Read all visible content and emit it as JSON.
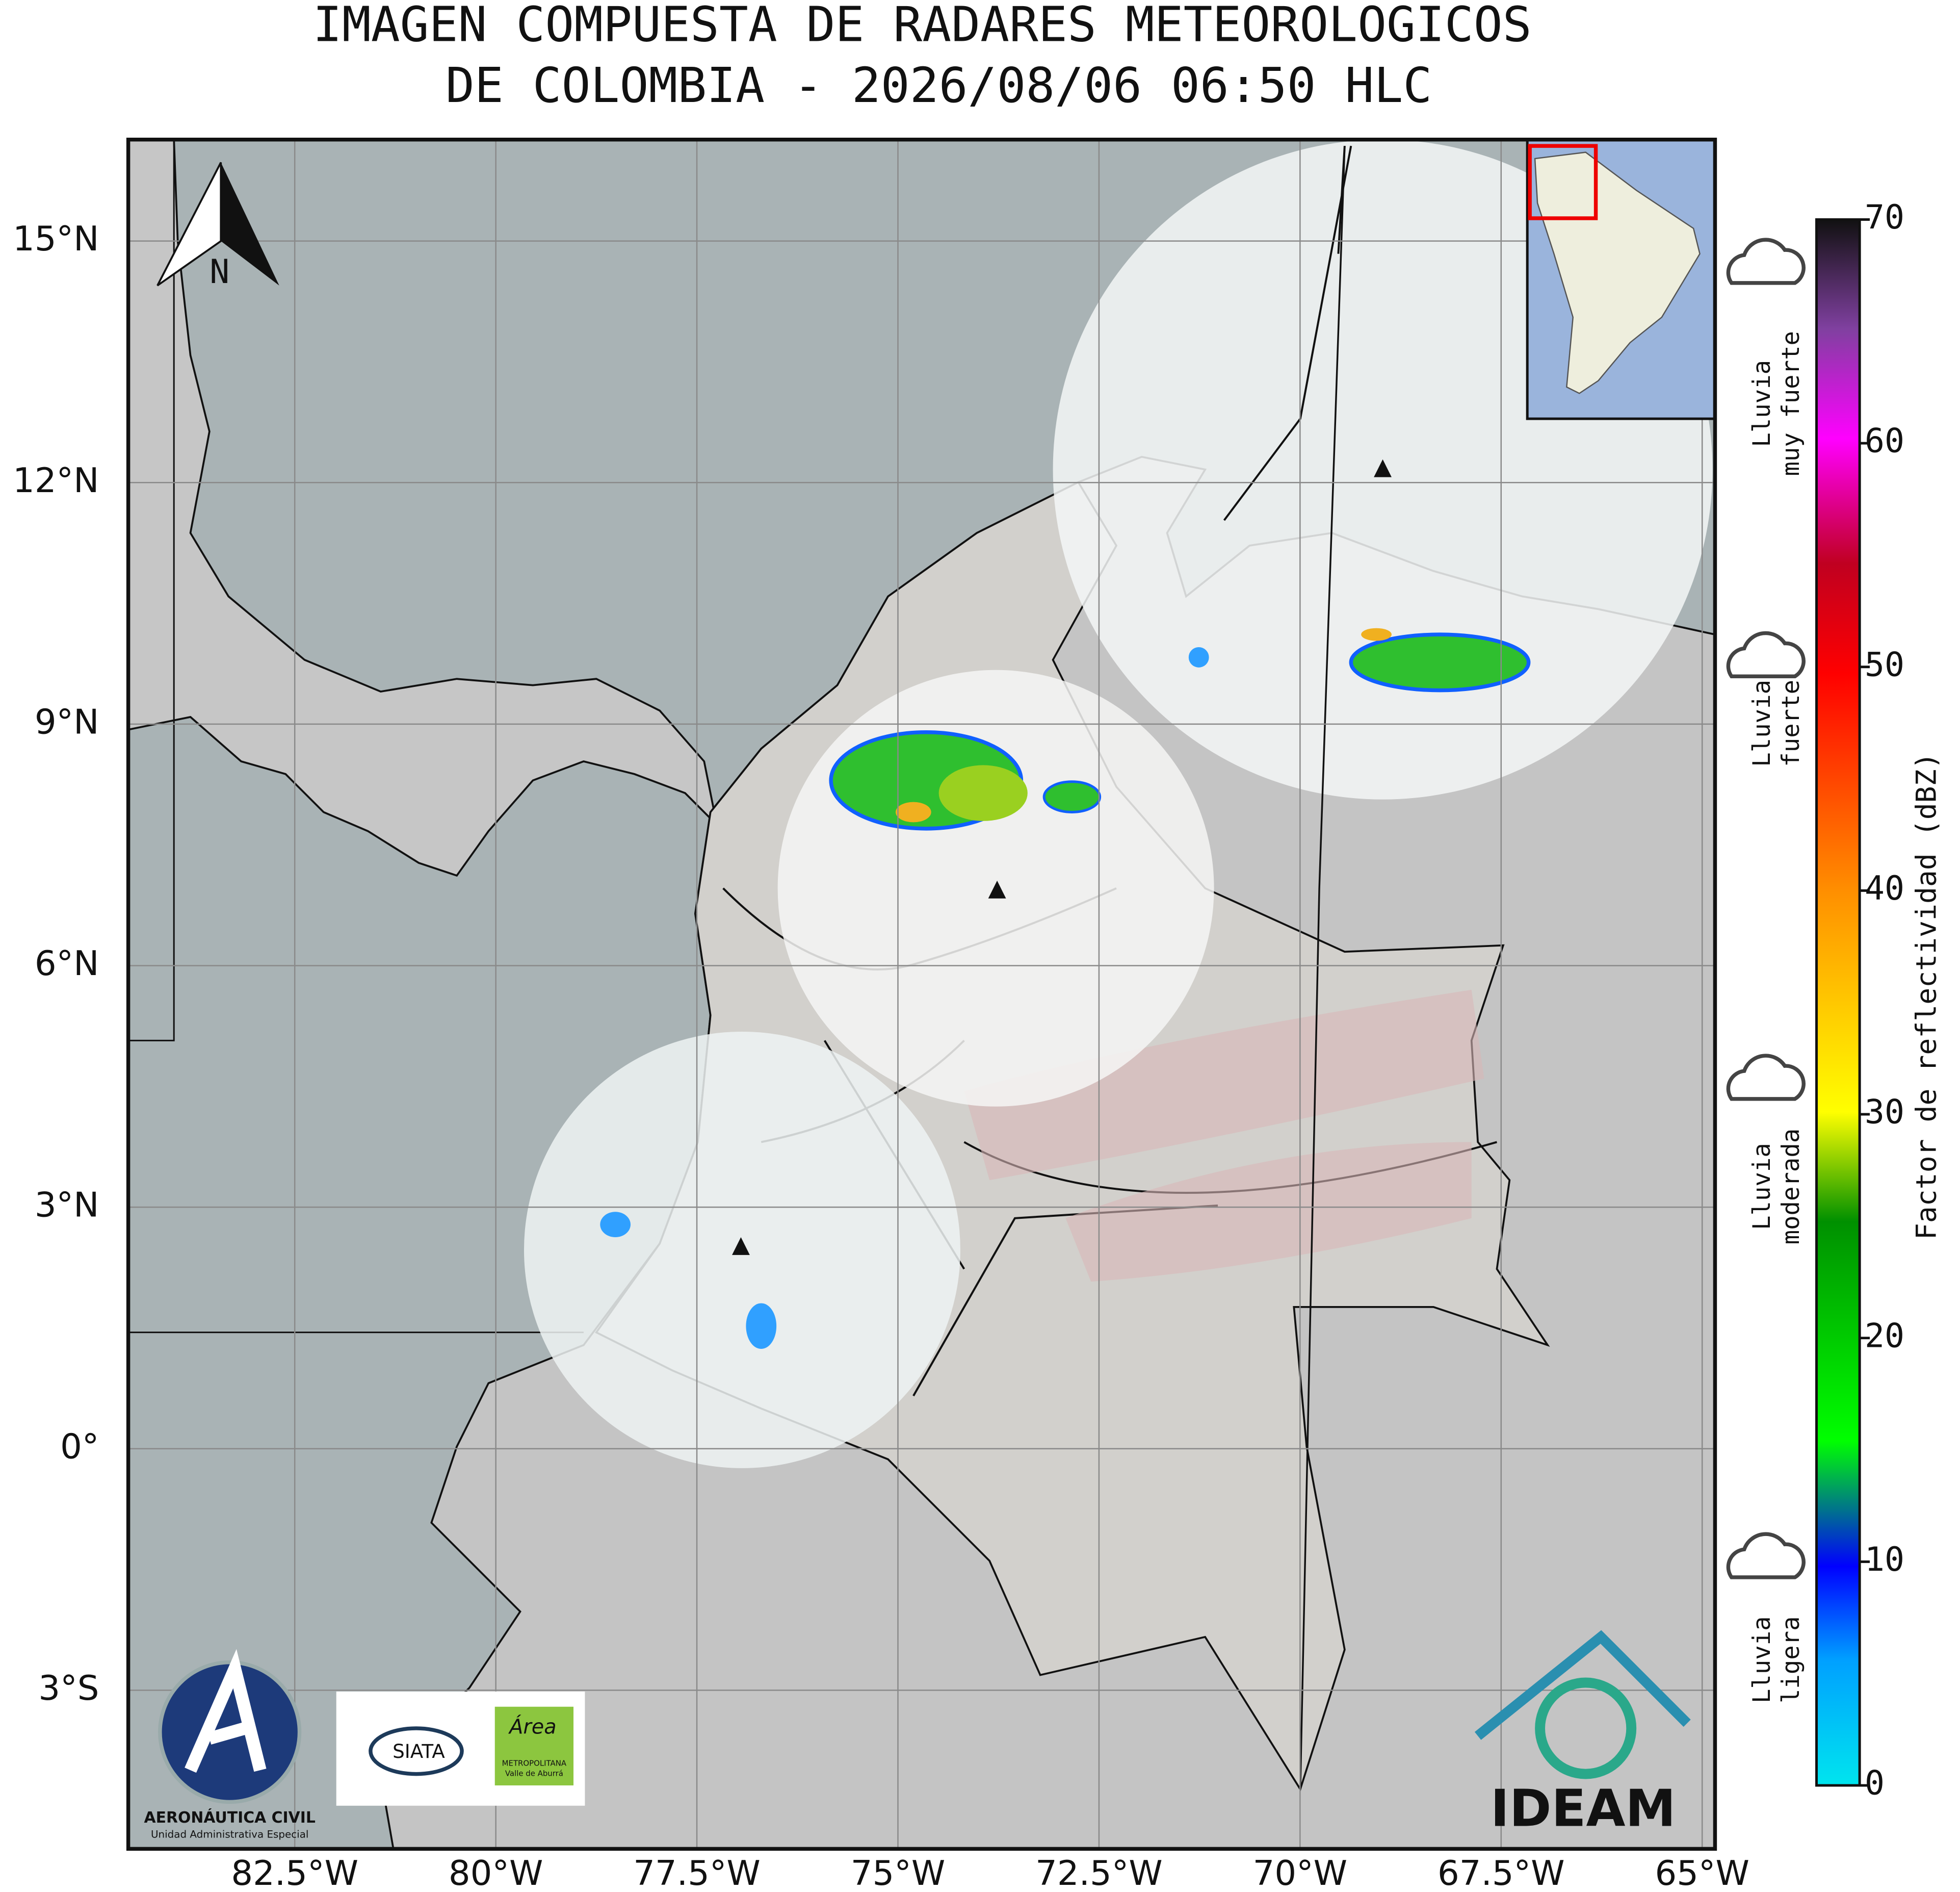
{
  "title": [
    "IMAGEN COMPUESTA DE RADARES METEOROLOGICOS",
    "DE COLOMBIA - 2026/08/06 06:50 HLC"
  ],
  "map": {
    "xlim": [
      -84.57,
      -64.84
    ],
    "ylim": [
      -4.97,
      16.26
    ],
    "xticks": [
      {
        "value": -82.5,
        "label": "82.5°W"
      },
      {
        "value": -80,
        "label": "80°W"
      },
      {
        "value": -77.5,
        "label": "77.5°W"
      },
      {
        "value": -75,
        "label": "75°W"
      },
      {
        "value": -72.5,
        "label": "72.5°W"
      },
      {
        "value": -70,
        "label": "70°W"
      },
      {
        "value": -67.5,
        "label": "67.5°W"
      },
      {
        "value": -65,
        "label": "65°W"
      }
    ],
    "yticks": [
      {
        "value": 15,
        "label": "15°N"
      },
      {
        "value": 12,
        "label": "12°N"
      },
      {
        "value": 9,
        "label": "9°N"
      },
      {
        "value": 6,
        "label": "6°N"
      },
      {
        "value": 3,
        "label": "3°N"
      },
      {
        "value": 0,
        "label": "0°"
      },
      {
        "value": -3,
        "label": "3°S"
      }
    ],
    "grid": true,
    "north": "N"
  },
  "colorbar": {
    "label": "Factor de reflectividad (dBZ)",
    "lim": [
      0,
      70
    ],
    "ticks": [
      0,
      10,
      20,
      30,
      40,
      50,
      60,
      70
    ],
    "categories": [
      [
        "Lluvia",
        "muy fuerte"
      ],
      [
        "Lluvia",
        "fuerte"
      ],
      [
        "Lluvia",
        "moderada"
      ],
      [
        "Lluvia",
        "ligera"
      ]
    ]
  },
  "logos": {
    "aerocivil": [
      "AERONÁUTICA CIVIL",
      "Unidad Administrativa Especial"
    ],
    "siata": "SIATA",
    "area": [
      "Área",
      "METROPOLITANA",
      "Valle de Aburrá"
    ],
    "ideam": "IDEAM"
  }
}
